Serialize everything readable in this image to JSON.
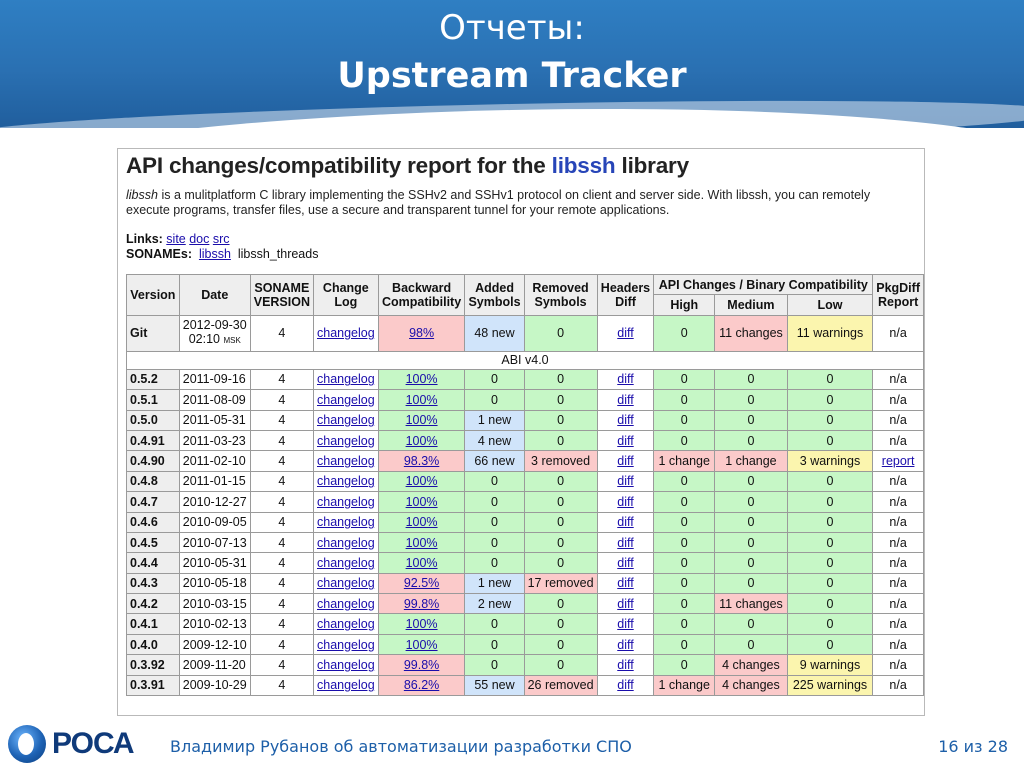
{
  "slide": {
    "title_line1": "Отчеты:",
    "title_line2": "Upstream Tracker"
  },
  "report": {
    "heading_pre": "API changes/compatibility report for the",
    "heading_lib": "libssh",
    "heading_post": "library",
    "desc_lib": "libssh",
    "desc_text": " is a mulitplatform C library implementing the SSHv2 and SSHv1 protocol on client and server side. With libssh, you can remotely execute programs, transfer files, use a secure and transparent tunnel for your remote applications.",
    "links_label": "Links:",
    "links": [
      "site",
      "doc",
      "src"
    ],
    "sonames_label": "SONAMEs:",
    "soname_link": "libssh",
    "soname_plain": "libssh_threads"
  },
  "table": {
    "headers": {
      "version": "Version",
      "date": "Date",
      "soname_1": "SONAME",
      "soname_2": "VERSION",
      "change_1": "Change",
      "change_2": "Log",
      "backward_1": "Backward",
      "backward_2": "Compatibility",
      "added_1": "Added",
      "added_2": "Symbols",
      "removed_1": "Removed",
      "removed_2": "Symbols",
      "headers_1": "Headers",
      "headers_2": "Diff",
      "api_group": "API Changes / Binary Compatibility",
      "high": "High",
      "medium": "Medium",
      "low": "Low",
      "pkgdiff_1": "PkgDiff",
      "pkgdiff_2": "Report"
    },
    "git_row": {
      "version": "Git",
      "date_line1": "2012-09-30",
      "date_line2": "02:10",
      "date_tz": "MSK",
      "soname": "4",
      "changelog": "changelog",
      "compat": "98%",
      "added": "48 new",
      "removed": "0",
      "diff": "diff",
      "high": "0",
      "medium": "11 changes",
      "low": "11 warnings",
      "pkgdiff": "n/a"
    },
    "abi_label": "ABI v4.0",
    "rows": [
      {
        "version": "0.5.2",
        "date": "2011-09-16",
        "soname": "4",
        "changelog": "changelog",
        "compat": "100%",
        "added": "0",
        "removed": "0",
        "diff": "diff",
        "high": "0",
        "medium": "0",
        "low": "0",
        "pkgdiff": "n/a"
      },
      {
        "version": "0.5.1",
        "date": "2011-08-09",
        "soname": "4",
        "changelog": "changelog",
        "compat": "100%",
        "added": "0",
        "removed": "0",
        "diff": "diff",
        "high": "0",
        "medium": "0",
        "low": "0",
        "pkgdiff": "n/a"
      },
      {
        "version": "0.5.0",
        "date": "2011-05-31",
        "soname": "4",
        "changelog": "changelog",
        "compat": "100%",
        "added": "1 new",
        "removed": "0",
        "diff": "diff",
        "high": "0",
        "medium": "0",
        "low": "0",
        "pkgdiff": "n/a"
      },
      {
        "version": "0.4.91",
        "date": "2011-03-23",
        "soname": "4",
        "changelog": "changelog",
        "compat": "100%",
        "added": "4 new",
        "removed": "0",
        "diff": "diff",
        "high": "0",
        "medium": "0",
        "low": "0",
        "pkgdiff": "n/a"
      },
      {
        "version": "0.4.90",
        "date": "2011-02-10",
        "soname": "4",
        "changelog": "changelog",
        "compat": "98.3%",
        "added": "66 new",
        "removed": "3 removed",
        "diff": "diff",
        "high": "1 change",
        "medium": "1 change",
        "low": "3 warnings",
        "pkgdiff": "report"
      },
      {
        "version": "0.4.8",
        "date": "2011-01-15",
        "soname": "4",
        "changelog": "changelog",
        "compat": "100%",
        "added": "0",
        "removed": "0",
        "diff": "diff",
        "high": "0",
        "medium": "0",
        "low": "0",
        "pkgdiff": "n/a"
      },
      {
        "version": "0.4.7",
        "date": "2010-12-27",
        "soname": "4",
        "changelog": "changelog",
        "compat": "100%",
        "added": "0",
        "removed": "0",
        "diff": "diff",
        "high": "0",
        "medium": "0",
        "low": "0",
        "pkgdiff": "n/a"
      },
      {
        "version": "0.4.6",
        "date": "2010-09-05",
        "soname": "4",
        "changelog": "changelog",
        "compat": "100%",
        "added": "0",
        "removed": "0",
        "diff": "diff",
        "high": "0",
        "medium": "0",
        "low": "0",
        "pkgdiff": "n/a"
      },
      {
        "version": "0.4.5",
        "date": "2010-07-13",
        "soname": "4",
        "changelog": "changelog",
        "compat": "100%",
        "added": "0",
        "removed": "0",
        "diff": "diff",
        "high": "0",
        "medium": "0",
        "low": "0",
        "pkgdiff": "n/a"
      },
      {
        "version": "0.4.4",
        "date": "2010-05-31",
        "soname": "4",
        "changelog": "changelog",
        "compat": "100%",
        "added": "0",
        "removed": "0",
        "diff": "diff",
        "high": "0",
        "medium": "0",
        "low": "0",
        "pkgdiff": "n/a"
      },
      {
        "version": "0.4.3",
        "date": "2010-05-18",
        "soname": "4",
        "changelog": "changelog",
        "compat": "92.5%",
        "added": "1 new",
        "removed": "17 removed",
        "diff": "diff",
        "high": "0",
        "medium": "0",
        "low": "0",
        "pkgdiff": "n/a"
      },
      {
        "version": "0.4.2",
        "date": "2010-03-15",
        "soname": "4",
        "changelog": "changelog",
        "compat": "99.8%",
        "added": "2 new",
        "removed": "0",
        "diff": "diff",
        "high": "0",
        "medium": "11 changes",
        "low": "0",
        "pkgdiff": "n/a"
      },
      {
        "version": "0.4.1",
        "date": "2010-02-13",
        "soname": "4",
        "changelog": "changelog",
        "compat": "100%",
        "added": "0",
        "removed": "0",
        "diff": "diff",
        "high": "0",
        "medium": "0",
        "low": "0",
        "pkgdiff": "n/a"
      },
      {
        "version": "0.4.0",
        "date": "2009-12-10",
        "soname": "4",
        "changelog": "changelog",
        "compat": "100%",
        "added": "0",
        "removed": "0",
        "diff": "diff",
        "high": "0",
        "medium": "0",
        "low": "0",
        "pkgdiff": "n/a"
      },
      {
        "version": "0.3.92",
        "date": "2009-11-20",
        "soname": "4",
        "changelog": "changelog",
        "compat": "99.8%",
        "added": "0",
        "removed": "0",
        "diff": "diff",
        "high": "0",
        "medium": "4 changes",
        "low": "9 warnings",
        "pkgdiff": "n/a"
      },
      {
        "version": "0.3.91",
        "date": "2009-10-29",
        "soname": "4",
        "changelog": "changelog",
        "compat": "86.2%",
        "added": "55 new",
        "removed": "26 removed",
        "diff": "diff",
        "high": "1 change",
        "medium": "4 changes",
        "low": "225 warnings",
        "pkgdiff": "n/a"
      }
    ]
  },
  "footer": {
    "logo_text": "РОСА",
    "text": "Владимир Рубанов об автоматизации разработки СПО",
    "page": "16 из 28"
  },
  "colors": {
    "ok": "#c6f7c6",
    "new": "#d0e4fa",
    "bad": "#fbcaca",
    "warn": "#fbf5ae",
    "link": "#1a0dab",
    "header_blue": "#2a70b2"
  }
}
